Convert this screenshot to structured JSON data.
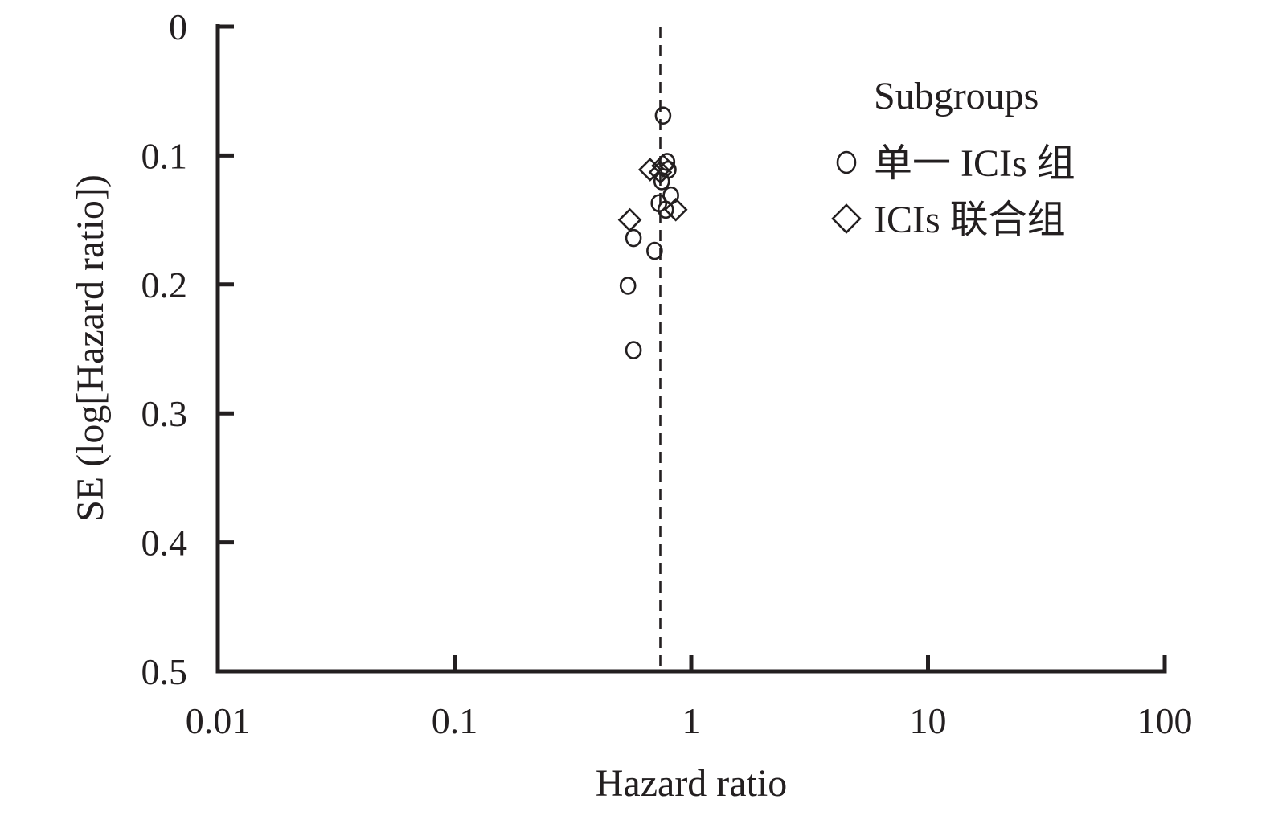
{
  "chart_data": {
    "type": "scatter",
    "title": "",
    "xlabel": "Hazard ratio",
    "ylabel": "SE (log[Hazard ratio])",
    "x_scale": "log",
    "xlim": [
      0.01,
      100
    ],
    "ylim": [
      0,
      0.5
    ],
    "y_reversed": true,
    "x_ticks": [
      0.01,
      0.1,
      1,
      10,
      100
    ],
    "x_tick_labels": [
      "0.01",
      "0.1",
      "1",
      "10",
      "100"
    ],
    "y_ticks": [
      0,
      0.1,
      0.2,
      0.3,
      0.4,
      0.5
    ],
    "y_tick_labels": [
      "0",
      "0.1",
      "0.2",
      "0.3",
      "0.4",
      "0.5"
    ],
    "reference_line": {
      "x": 0.74,
      "style": "dashed"
    },
    "grid": false,
    "legend": {
      "title": "Subgroups",
      "position": "top-right"
    },
    "series": [
      {
        "name": "单一 ICIs 组",
        "marker": "circle",
        "points": [
          {
            "x": 0.76,
            "y": 0.069
          },
          {
            "x": 0.79,
            "y": 0.105
          },
          {
            "x": 0.8,
            "y": 0.111
          },
          {
            "x": 0.75,
            "y": 0.12
          },
          {
            "x": 0.82,
            "y": 0.131
          },
          {
            "x": 0.73,
            "y": 0.137
          },
          {
            "x": 0.78,
            "y": 0.142
          },
          {
            "x": 0.57,
            "y": 0.164
          },
          {
            "x": 0.7,
            "y": 0.174
          },
          {
            "x": 0.54,
            "y": 0.201
          },
          {
            "x": 0.57,
            "y": 0.251
          }
        ]
      },
      {
        "name": "ICIs 联合组",
        "marker": "diamond",
        "points": [
          {
            "x": 0.67,
            "y": 0.111
          },
          {
            "x": 0.76,
            "y": 0.108
          },
          {
            "x": 0.74,
            "y": 0.113
          },
          {
            "x": 0.86,
            "y": 0.142
          },
          {
            "x": 0.55,
            "y": 0.15
          }
        ]
      }
    ]
  }
}
